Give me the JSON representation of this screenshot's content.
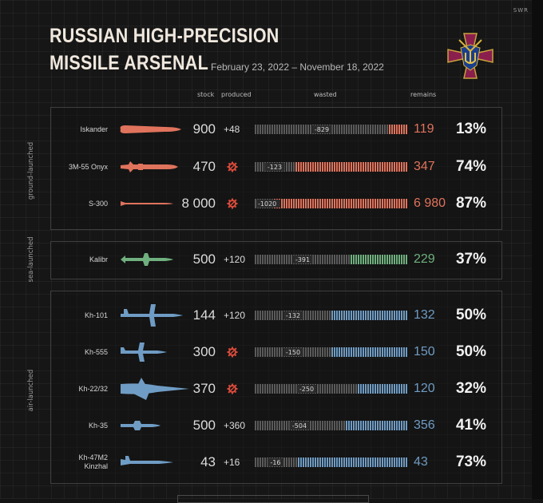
{
  "brand": "SWR",
  "title_line1": "RUSSIAN HIGH-PRECISION",
  "title_line2": "MISSILE ARSENAL",
  "subtitle": "February 23, 2022 – November 18, 2022",
  "columns": {
    "stock": "stock",
    "produced": "produced",
    "wasted": "wasted",
    "remains": "remains"
  },
  "groups": {
    "ground": "ground-launched",
    "sea": "sea-launched",
    "air": "air-launched"
  },
  "colors": {
    "ground": "#e0735c",
    "sea": "#6fb07e",
    "air": "#6f9cc4",
    "wasted_bar": "#5a5a5a",
    "background": "#161616",
    "gear": "#d94a3a"
  },
  "chart_data": {
    "type": "bar",
    "series_fields": [
      "stock",
      "produced",
      "wasted",
      "remains",
      "percent_remaining"
    ],
    "rows": [
      {
        "group": "ground",
        "name": "Iskander",
        "name2": "",
        "stock": 900,
        "stock_label": "900",
        "produced": 48,
        "produced_label": "+48",
        "wasted": -829,
        "wasted_label": "-829",
        "remains": 119,
        "remains_label": "119",
        "percent": 13,
        "percent_label": "13%"
      },
      {
        "group": "ground",
        "name": "3M-55 Onyx",
        "name2": "",
        "stock": 470,
        "stock_label": "470",
        "produced": null,
        "produced_label": "",
        "produced_icon": "gear-icon",
        "wasted": -123,
        "wasted_label": "-123",
        "remains": 347,
        "remains_label": "347",
        "percent": 74,
        "percent_label": "74%"
      },
      {
        "group": "ground",
        "name": "S-300",
        "name2": "",
        "stock": 8000,
        "stock_label": "8 000",
        "produced": null,
        "produced_label": "",
        "produced_icon": "gear-icon",
        "wasted": -1020,
        "wasted_label": "-1020",
        "remains": 6980,
        "remains_label": "6 980",
        "percent": 87,
        "percent_label": "87%"
      },
      {
        "group": "sea",
        "name": "Kalibr",
        "name2": "",
        "stock": 500,
        "stock_label": "500",
        "produced": 120,
        "produced_label": "+120",
        "wasted": -391,
        "wasted_label": "-391",
        "remains": 229,
        "remains_label": "229",
        "percent": 37,
        "percent_label": "37%"
      },
      {
        "group": "air",
        "name": "Kh-101",
        "name2": "",
        "stock": 144,
        "stock_label": "144",
        "produced": 120,
        "produced_label": "+120",
        "wasted": -132,
        "wasted_label": "-132",
        "remains": 132,
        "remains_label": "132",
        "percent": 50,
        "percent_label": "50%"
      },
      {
        "group": "air",
        "name": "Kh-555",
        "name2": "",
        "stock": 300,
        "stock_label": "300",
        "produced": null,
        "produced_label": "",
        "produced_icon": "gear-icon",
        "wasted": -150,
        "wasted_label": "-150",
        "remains": 150,
        "remains_label": "150",
        "percent": 50,
        "percent_label": "50%"
      },
      {
        "group": "air",
        "name": "Kh-22/32",
        "name2": "",
        "stock": 370,
        "stock_label": "370",
        "produced": null,
        "produced_label": "",
        "produced_icon": "gear-icon",
        "wasted": -250,
        "wasted_label": "-250",
        "remains": 120,
        "remains_label": "120",
        "percent": 32,
        "percent_label": "32%"
      },
      {
        "group": "air",
        "name": "Kh-35",
        "name2": "",
        "stock": 500,
        "stock_label": "500",
        "produced": 360,
        "produced_label": "+360",
        "wasted": -504,
        "wasted_label": "-504",
        "remains": 356,
        "remains_label": "356",
        "percent": 41,
        "percent_label": "41%"
      },
      {
        "group": "air",
        "name": "Kh-47M2",
        "name2": "Kinzhal",
        "stock": 43,
        "stock_label": "43",
        "produced": 16,
        "produced_label": "+16",
        "wasted": -16,
        "wasted_label": "-16",
        "remains": 43,
        "remains_label": "43",
        "percent": 73,
        "percent_label": "73%"
      }
    ]
  }
}
